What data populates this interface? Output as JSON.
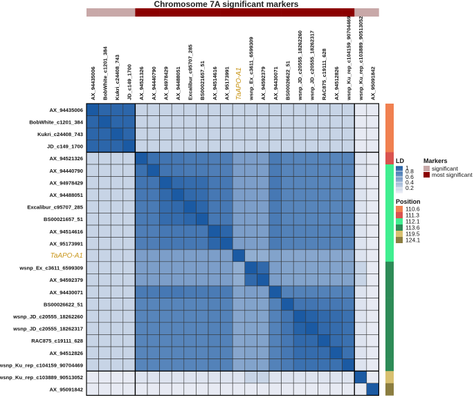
{
  "chart_data": {
    "type": "heatmap",
    "title": "Chromosome 7A significant markers",
    "markers": [
      "AX_94435006",
      "BobWhite_c1201_384",
      "Kukri_c24408_743",
      "JD_c149_1700",
      "AX_94521326",
      "AX_94440790",
      "AX_94978429",
      "AX_94488051",
      "Excalibur_c95707_285",
      "BS00021657_51",
      "AX_94514616",
      "AX_95173991",
      "TaAPO-A1",
      "wsnp_Ex_c3611_6599309",
      "AX_94592379",
      "AX_94430071",
      "BS00026622_51",
      "wsnp_JD_c20555_18262260",
      "wsnp_JD_c20555_18262317",
      "RAC875_c19111_628",
      "AX_94512826",
      "wsnp_Ku_rep_c104159_90704469",
      "wsnp_Ku_rep_c103889_90513052",
      "AX_95091842"
    ],
    "highlight_marker": "TaAPO-A1",
    "highlight_color": "#c9961a",
    "significance": [
      "significant",
      "significant",
      "significant",
      "significant",
      "most significant",
      "most significant",
      "most significant",
      "most significant",
      "most significant",
      "most significant",
      "most significant",
      "most significant",
      "most significant",
      "most significant",
      "most significant",
      "most significant",
      "most significant",
      "most significant",
      "most significant",
      "most significant",
      "most significant",
      "most significant",
      "significant",
      "significant"
    ],
    "position": [
      110.6,
      110.6,
      110.6,
      110.6,
      111.3,
      112.1,
      112.1,
      112.1,
      112.1,
      112.1,
      112.1,
      112.1,
      112.1,
      113.6,
      113.6,
      113.6,
      113.6,
      113.6,
      113.6,
      113.6,
      113.6,
      113.6,
      119.5,
      124.1
    ],
    "block_boundaries": [
      4,
      22
    ],
    "ld": [
      [
        1.0,
        0.92,
        0.92,
        0.92,
        0.2,
        0.2,
        0.2,
        0.2,
        0.2,
        0.2,
        0.2,
        0.2,
        0.2,
        0.2,
        0.2,
        0.2,
        0.2,
        0.2,
        0.2,
        0.2,
        0.2,
        0.2,
        0.05,
        0.05
      ],
      [
        0.92,
        1.0,
        0.92,
        0.92,
        0.2,
        0.2,
        0.2,
        0.2,
        0.2,
        0.2,
        0.2,
        0.2,
        0.2,
        0.2,
        0.2,
        0.2,
        0.2,
        0.2,
        0.2,
        0.2,
        0.2,
        0.2,
        0.05,
        0.05
      ],
      [
        0.92,
        0.92,
        1.0,
        0.92,
        0.2,
        0.2,
        0.2,
        0.2,
        0.2,
        0.2,
        0.2,
        0.2,
        0.2,
        0.2,
        0.2,
        0.2,
        0.2,
        0.2,
        0.2,
        0.2,
        0.2,
        0.2,
        0.05,
        0.05
      ],
      [
        0.92,
        0.92,
        0.92,
        1.0,
        0.2,
        0.2,
        0.2,
        0.2,
        0.2,
        0.2,
        0.2,
        0.2,
        0.2,
        0.2,
        0.2,
        0.2,
        0.2,
        0.2,
        0.2,
        0.2,
        0.2,
        0.2,
        0.05,
        0.05
      ],
      [
        0.2,
        0.2,
        0.2,
        0.2,
        1.0,
        0.85,
        0.82,
        0.8,
        0.78,
        0.78,
        0.76,
        0.76,
        0.55,
        0.55,
        0.55,
        0.78,
        0.72,
        0.72,
        0.72,
        0.72,
        0.72,
        0.72,
        0.1,
        0.05
      ],
      [
        0.2,
        0.2,
        0.2,
        0.2,
        0.85,
        1.0,
        0.82,
        0.8,
        0.78,
        0.78,
        0.76,
        0.76,
        0.55,
        0.55,
        0.55,
        0.78,
        0.72,
        0.72,
        0.72,
        0.72,
        0.72,
        0.72,
        0.1,
        0.05
      ],
      [
        0.2,
        0.2,
        0.2,
        0.2,
        0.82,
        0.82,
        1.0,
        0.9,
        0.88,
        0.88,
        0.8,
        0.8,
        0.55,
        0.55,
        0.55,
        0.8,
        0.72,
        0.72,
        0.72,
        0.72,
        0.72,
        0.72,
        0.1,
        0.05
      ],
      [
        0.2,
        0.2,
        0.2,
        0.2,
        0.8,
        0.8,
        0.9,
        1.0,
        0.9,
        0.88,
        0.8,
        0.8,
        0.55,
        0.55,
        0.55,
        0.8,
        0.72,
        0.72,
        0.72,
        0.72,
        0.72,
        0.72,
        0.1,
        0.05
      ],
      [
        0.2,
        0.2,
        0.2,
        0.2,
        0.78,
        0.78,
        0.88,
        0.9,
        1.0,
        0.92,
        0.8,
        0.8,
        0.55,
        0.55,
        0.55,
        0.78,
        0.72,
        0.72,
        0.72,
        0.72,
        0.72,
        0.72,
        0.1,
        0.05
      ],
      [
        0.2,
        0.2,
        0.2,
        0.2,
        0.78,
        0.78,
        0.88,
        0.88,
        0.92,
        1.0,
        0.8,
        0.8,
        0.55,
        0.55,
        0.55,
        0.78,
        0.72,
        0.72,
        0.72,
        0.72,
        0.72,
        0.72,
        0.1,
        0.05
      ],
      [
        0.2,
        0.2,
        0.2,
        0.2,
        0.76,
        0.76,
        0.8,
        0.8,
        0.8,
        0.8,
        1.0,
        0.92,
        0.55,
        0.55,
        0.55,
        0.78,
        0.74,
        0.74,
        0.74,
        0.74,
        0.74,
        0.74,
        0.1,
        0.05
      ],
      [
        0.2,
        0.2,
        0.2,
        0.2,
        0.76,
        0.76,
        0.8,
        0.8,
        0.8,
        0.8,
        0.92,
        1.0,
        0.55,
        0.55,
        0.55,
        0.78,
        0.74,
        0.74,
        0.74,
        0.74,
        0.74,
        0.74,
        0.1,
        0.05
      ],
      [
        0.2,
        0.2,
        0.2,
        0.2,
        0.55,
        0.55,
        0.55,
        0.55,
        0.55,
        0.55,
        0.55,
        0.55,
        1.0,
        0.45,
        0.45,
        0.52,
        0.5,
        0.5,
        0.5,
        0.5,
        0.5,
        0.5,
        0.1,
        0.05
      ],
      [
        0.2,
        0.2,
        0.2,
        0.2,
        0.55,
        0.55,
        0.55,
        0.55,
        0.55,
        0.55,
        0.55,
        0.55,
        0.45,
        1.0,
        0.9,
        0.55,
        0.52,
        0.52,
        0.52,
        0.52,
        0.52,
        0.52,
        0.2,
        0.05
      ],
      [
        0.2,
        0.2,
        0.2,
        0.2,
        0.55,
        0.55,
        0.55,
        0.55,
        0.55,
        0.55,
        0.55,
        0.55,
        0.45,
        0.9,
        1.0,
        0.55,
        0.52,
        0.52,
        0.52,
        0.52,
        0.52,
        0.52,
        0.2,
        0.05
      ],
      [
        0.2,
        0.2,
        0.2,
        0.2,
        0.78,
        0.78,
        0.8,
        0.8,
        0.78,
        0.78,
        0.78,
        0.78,
        0.52,
        0.55,
        0.55,
        1.0,
        0.74,
        0.74,
        0.74,
        0.74,
        0.74,
        0.74,
        0.1,
        0.05
      ],
      [
        0.2,
        0.2,
        0.2,
        0.2,
        0.72,
        0.72,
        0.72,
        0.72,
        0.72,
        0.72,
        0.74,
        0.74,
        0.5,
        0.52,
        0.52,
        0.74,
        1.0,
        0.82,
        0.82,
        0.8,
        0.8,
        0.78,
        0.1,
        0.05
      ],
      [
        0.2,
        0.2,
        0.2,
        0.2,
        0.72,
        0.72,
        0.72,
        0.72,
        0.72,
        0.72,
        0.74,
        0.74,
        0.5,
        0.52,
        0.52,
        0.74,
        0.82,
        1.0,
        0.95,
        0.9,
        0.88,
        0.85,
        0.1,
        0.05
      ],
      [
        0.2,
        0.2,
        0.2,
        0.2,
        0.72,
        0.72,
        0.72,
        0.72,
        0.72,
        0.72,
        0.74,
        0.74,
        0.5,
        0.52,
        0.52,
        0.74,
        0.82,
        0.95,
        1.0,
        0.9,
        0.88,
        0.85,
        0.1,
        0.05
      ],
      [
        0.2,
        0.2,
        0.2,
        0.2,
        0.72,
        0.72,
        0.72,
        0.72,
        0.72,
        0.72,
        0.74,
        0.74,
        0.5,
        0.52,
        0.52,
        0.74,
        0.8,
        0.9,
        0.9,
        1.0,
        0.88,
        0.85,
        0.1,
        0.05
      ],
      [
        0.2,
        0.2,
        0.2,
        0.2,
        0.72,
        0.72,
        0.72,
        0.72,
        0.72,
        0.72,
        0.74,
        0.74,
        0.5,
        0.52,
        0.52,
        0.74,
        0.8,
        0.88,
        0.88,
        0.88,
        1.0,
        0.85,
        0.1,
        0.05
      ],
      [
        0.2,
        0.2,
        0.2,
        0.2,
        0.72,
        0.72,
        0.72,
        0.72,
        0.72,
        0.72,
        0.74,
        0.74,
        0.5,
        0.52,
        0.52,
        0.74,
        0.78,
        0.85,
        0.85,
        0.85,
        0.85,
        1.0,
        0.1,
        0.05
      ],
      [
        0.05,
        0.05,
        0.05,
        0.05,
        0.1,
        0.1,
        0.1,
        0.1,
        0.1,
        0.1,
        0.1,
        0.1,
        0.1,
        0.2,
        0.2,
        0.1,
        0.1,
        0.1,
        0.1,
        0.1,
        0.1,
        0.1,
        1.0,
        0.05
      ],
      [
        0.05,
        0.05,
        0.05,
        0.05,
        0.05,
        0.05,
        0.05,
        0.05,
        0.05,
        0.05,
        0.05,
        0.05,
        0.05,
        0.05,
        0.05,
        0.05,
        0.05,
        0.05,
        0.05,
        0.05,
        0.05,
        0.05,
        0.05,
        1.0
      ]
    ],
    "legend_ld": {
      "title": "LD",
      "ticks": [
        1,
        0.8,
        0.6,
        0.4,
        0.2
      ],
      "tick_labels": [
        "1",
        "0.8",
        "0.6",
        "0.4",
        "0.2"
      ],
      "range": [
        0,
        1
      ],
      "color_low": "#f2f2f7",
      "color_high": "#1b5aa3"
    },
    "legend_markers": {
      "title": "Markers",
      "entries": [
        {
          "label": "significant",
          "color": "#c8a8a8"
        },
        {
          "label": "most significant",
          "color": "#8b0000"
        }
      ]
    },
    "legend_position": {
      "title": "Position",
      "entries": [
        {
          "label": "110.6",
          "value": 110.6,
          "color": "#f08050"
        },
        {
          "label": "111.3",
          "value": 111.3,
          "color": "#d9534f"
        },
        {
          "label": "112.1",
          "value": 112.1,
          "color": "#40ee90"
        },
        {
          "label": "113.6",
          "value": 113.6,
          "color": "#2e8b57"
        },
        {
          "label": "119.5",
          "value": 119.5,
          "color": "#d8c070"
        },
        {
          "label": "124.1",
          "value": 124.1,
          "color": "#8b7d40"
        }
      ]
    },
    "legend_placement": "right"
  }
}
